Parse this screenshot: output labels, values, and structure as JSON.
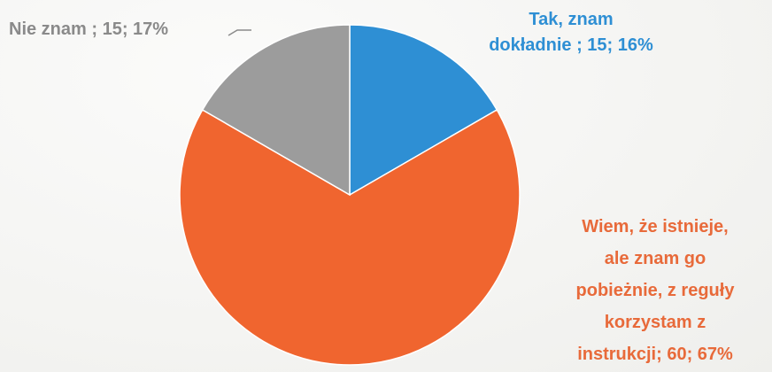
{
  "chart_data": {
    "type": "pie",
    "slices": [
      {
        "label_lines": [
          "Tak, znam",
          "dokładnie ; 15; 16%"
        ],
        "category": "Tak, znam dokładnie",
        "value": 15,
        "percent": 16,
        "color": "#2e8fd4"
      },
      {
        "label_lines": [
          "Wiem, że istnieje,",
          "ale znam go",
          "pobieżnie, z reguły",
          "korzystam z",
          "instrukcji; 60; 67%"
        ],
        "category": "Wiem, że istnieje, ale znam go pobieżnie, z reguły korzystam z instrukcji",
        "value": 60,
        "percent": 67,
        "color": "#f0652f"
      },
      {
        "label_lines": [
          "Nie znam ; 15; 17%"
        ],
        "category": "Nie znam",
        "value": 15,
        "percent": 17,
        "color": "#9c9c9c"
      }
    ],
    "start_angle_deg": 0,
    "direction": "clockwise",
    "label_colors": [
      "#2e8fd4",
      "#e86a3a",
      "#8a8a8a"
    ]
  }
}
